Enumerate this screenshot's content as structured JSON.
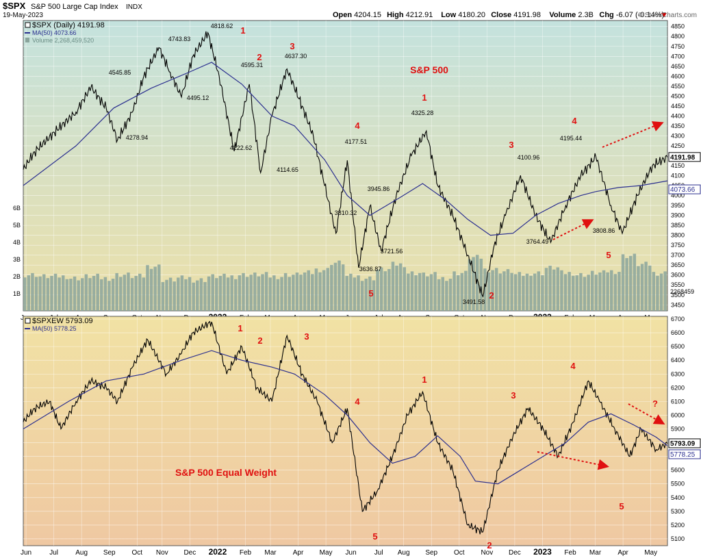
{
  "header": {
    "symbol": "$SPX",
    "name": "S&P 500 Large Cap Index",
    "exchange": "INDX",
    "date": "19-May-2023",
    "open_label": "Open",
    "open": "4204.15",
    "high_label": "High",
    "high": "4212.91",
    "low_label": "Low",
    "low": "4180.20",
    "close_label": "Close",
    "close": "4191.98",
    "volume_label": "Volume",
    "volume": "2.3B",
    "chg_label": "Chg",
    "chg": "-6.07 (-0.14%)",
    "watermark": "© StockCharts.com"
  },
  "colors": {
    "price": "#000000",
    "ma": "#2b2f8f",
    "volume": "#8aa49c",
    "annotation": "#e01010",
    "top_bg_top": "#c4e2de",
    "top_bg_bottom": "#ecdfa8",
    "bottom_bg_top": "#f1e2a4",
    "bottom_bg_bottom": "#efc8a2"
  },
  "chart_data": [
    {
      "type": "line",
      "legend": [
        {
          "label": "$SPX (Daily) 4191.98",
          "icon": "square-icon"
        },
        {
          "label": "MA(50) 4073.66",
          "icon": "line-icon"
        },
        {
          "label": "Volume 2,268,459,520",
          "icon": "bar-icon"
        }
      ],
      "title": "S&P 500",
      "ylim": [
        3420,
        4880
      ],
      "y_ticks": [
        3450,
        3500,
        3550,
        3600,
        3650,
        3700,
        3750,
        3800,
        3850,
        3900,
        3950,
        4000,
        4050,
        4100,
        4150,
        4200,
        4250,
        4300,
        4350,
        4400,
        4450,
        4500,
        4550,
        4600,
        4650,
        4700,
        4750,
        4800,
        4850
      ],
      "x_ticks": [
        "Jun",
        "Jul",
        "Aug",
        "Sep",
        "Oct",
        "Nov",
        "Dec",
        "2022",
        "Feb",
        "Mar",
        "Apr",
        "May",
        "Jun",
        "Jul",
        "Aug",
        "Sep",
        "Oct",
        "Nov",
        "Dec",
        "2023",
        "Feb",
        "Mar",
        "Apr",
        "May"
      ],
      "bold_ticks": [
        "2022",
        "2023"
      ],
      "last_price_badge": "4191.98",
      "last_ma_badge": "4073.66",
      "last_volume_badge": "2268459",
      "volume_axis": {
        "labels": [
          "1B",
          "2B",
          "3B",
          "4B",
          "5B",
          "6B"
        ],
        "max_billions": 6.5
      },
      "volume_series": [
        2.1,
        2.0,
        2.0,
        1.9,
        2.0,
        1.9,
        2.1,
        2.0,
        2.6,
        1.8,
        1.9,
        1.8,
        2.0,
        2.0,
        2.1,
        2.1,
        2.0,
        2.1,
        2.2,
        2.4,
        2.8,
        2.0,
        1.9,
        2.4,
        2.7,
        2.2,
        2.1,
        1.9,
        2.2,
        3.1,
        2.4,
        2.3,
        2.1,
        2.2,
        2.5,
        2.2,
        2.1,
        2.2,
        2.3,
        3.2,
        2.7,
        2.2
      ],
      "series": [
        {
          "name": "$SPX",
          "x": [
            0,
            3,
            9,
            14,
            18,
            22,
            25,
            29,
            32,
            36,
            39,
            42,
            45,
            49,
            52,
            56,
            60,
            63,
            66,
            70,
            74,
            77,
            80,
            83,
            86,
            89,
            92,
            95,
            99,
            103,
            107,
            110,
            114,
            118,
            122,
            125,
            128,
            132,
            136,
            140,
            144,
            148,
            152,
            156,
            159,
            163,
            167,
            171
          ],
          "y": [
            4130,
            4220,
            4330,
            4420,
            4546,
            4440,
            4279,
            4420,
            4600,
            4744,
            4620,
            4495,
            4700,
            4819,
            4600,
            4223,
            4560,
            4115,
            4400,
            4637,
            4450,
            4300,
            4050,
            3810,
            4177,
            3637,
            3946,
            3722,
            4000,
            4200,
            4325,
            4050,
            3900,
            3700,
            3492,
            3750,
            3900,
            4101,
            3900,
            3764,
            3950,
            4100,
            4195,
            3950,
            3809,
            4000,
            4150,
            4192
          ]
        },
        {
          "name": "MA(50)",
          "x": [
            0,
            14,
            24,
            34,
            44,
            50,
            58,
            66,
            72,
            80,
            86,
            92,
            100,
            106,
            112,
            118,
            124,
            130,
            136,
            142,
            148,
            152,
            158,
            164,
            171
          ],
          "y": [
            4050,
            4250,
            4440,
            4540,
            4620,
            4670,
            4560,
            4400,
            4350,
            4180,
            4000,
            3900,
            3990,
            4060,
            3980,
            3880,
            3800,
            3810,
            3900,
            3960,
            4000,
            4020,
            4040,
            4050,
            4074
          ]
        }
      ],
      "annotations": [
        {
          "label": "4818.62"
        },
        {
          "label": "4743.83"
        },
        {
          "label": "4545.85"
        },
        {
          "label": "4495.12"
        },
        {
          "label": "4278.94"
        },
        {
          "label": "4595.31"
        },
        {
          "label": "4637.30"
        },
        {
          "label": "4222.62"
        },
        {
          "label": "4114.65"
        },
        {
          "label": "4177.51"
        },
        {
          "label": "3945.86"
        },
        {
          "label": "3810.32"
        },
        {
          "label": "3721.56"
        },
        {
          "label": "3636.87"
        },
        {
          "label": "4325.28"
        },
        {
          "label": "3491.58"
        },
        {
          "label": "4100.96"
        },
        {
          "label": "3764.49"
        },
        {
          "label": "4195.44"
        },
        {
          "label": "3808.86"
        }
      ],
      "wave_labels": [
        "1",
        "2",
        "3",
        "4",
        "5",
        "1",
        "2",
        "3",
        "4",
        "5"
      ]
    },
    {
      "type": "line",
      "legend": [
        {
          "label": "$SPXEW 5793.09",
          "icon": "square-icon"
        },
        {
          "label": "MA(50) 5778.25",
          "icon": "line-icon"
        }
      ],
      "title": "S&P 500 Equal Weight",
      "ylim": [
        5050,
        6720
      ],
      "y_ticks": [
        5100,
        5200,
        5300,
        5400,
        5500,
        5600,
        5700,
        5800,
        5900,
        6000,
        6100,
        6200,
        6300,
        6400,
        6500,
        6600,
        6700
      ],
      "x_ticks": [
        "Jun",
        "Jul",
        "Aug",
        "Sep",
        "Oct",
        "Nov",
        "Dec",
        "2022",
        "Feb",
        "Mar",
        "Apr",
        "May",
        "Jun",
        "Jul",
        "Aug",
        "Sep",
        "Oct",
        "Nov",
        "Dec",
        "2023",
        "Feb",
        "Mar",
        "Apr",
        "May"
      ],
      "bold_ticks": [
        "2022",
        "2023"
      ],
      "last_price_badge": "5793.09",
      "last_ma_badge": "5778.25",
      "series": [
        {
          "name": "$SPXEW",
          "x": [
            0,
            3,
            7,
            10,
            14,
            18,
            22,
            25,
            29,
            33,
            38,
            42,
            45,
            50,
            54,
            58,
            62,
            66,
            70,
            74,
            78,
            82,
            86,
            90,
            94,
            98,
            102,
            106,
            110,
            114,
            118,
            122,
            126,
            130,
            134,
            138,
            142,
            146,
            150,
            153,
            157,
            161,
            164,
            168,
            171
          ],
          "y": [
            5950,
            6050,
            6100,
            5900,
            6100,
            6250,
            6200,
            6100,
            6350,
            6550,
            6300,
            6450,
            6600,
            6680,
            6300,
            6500,
            6200,
            6100,
            6580,
            6300,
            6100,
            5800,
            6050,
            5300,
            5450,
            5700,
            6000,
            6170,
            5800,
            5600,
            5200,
            5150,
            5600,
            5850,
            6050,
            5900,
            5700,
            5950,
            6250,
            6100,
            5900,
            5700,
            5900,
            5750,
            5793
          ]
        },
        {
          "name": "MA(50)",
          "x": [
            0,
            12,
            22,
            32,
            42,
            50,
            58,
            66,
            72,
            80,
            86,
            92,
            98,
            104,
            110,
            116,
            120,
            126,
            132,
            138,
            144,
            150,
            156,
            162,
            168,
            171
          ],
          "y": [
            5900,
            6100,
            6250,
            6300,
            6400,
            6470,
            6400,
            6350,
            6300,
            6150,
            6000,
            5800,
            5650,
            5700,
            5850,
            5700,
            5520,
            5500,
            5600,
            5700,
            5800,
            5950,
            6010,
            5930,
            5840,
            5778
          ]
        }
      ],
      "wave_labels": [
        "1",
        "2",
        "3",
        "4",
        "5",
        "1",
        "2",
        "3",
        "4",
        "5",
        "?"
      ]
    }
  ]
}
